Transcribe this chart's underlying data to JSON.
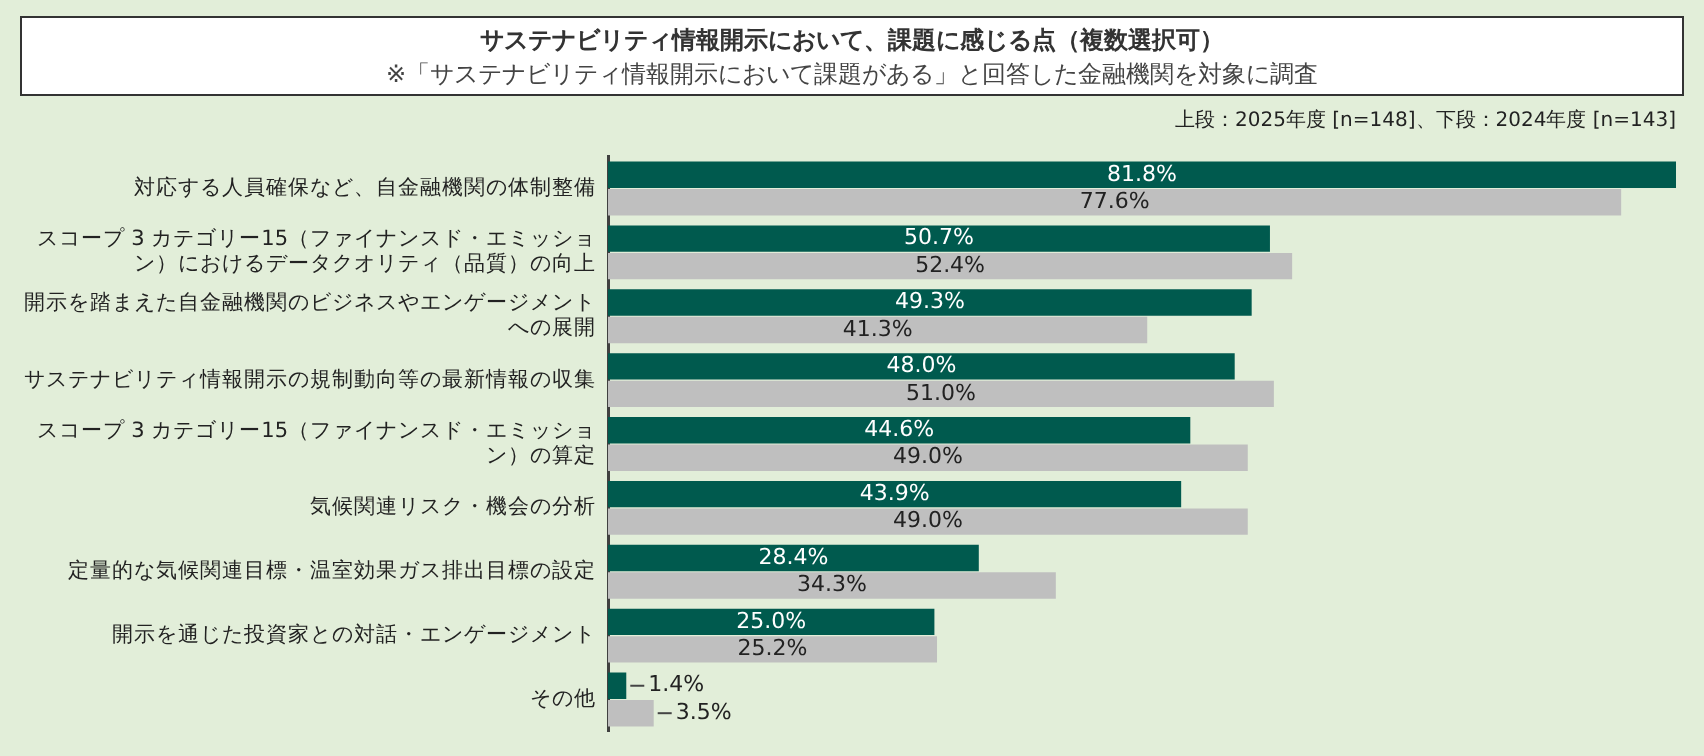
{
  "chart_data": {
    "type": "bar",
    "orientation": "horizontal",
    "title": "サステナビリティ情報開示において、課題に感じる点（複数選択可）",
    "subtitle": "※「サステナビリティ情報開示において課題がある」と回答した金融機関を対象に調査",
    "annotations": [
      "上段：2025年度 [n=148]、下段：2024年度 [n=143]"
    ],
    "categories": [
      "対応する人員確保など、自金融機関の体制整備",
      "スコープ 3 カテゴリー15（ファイナンスド・エミッション）におけるデータクオリティ（品質）の向上",
      "開示を踏まえた自金融機関のビジネスやエンゲージメントへの展開",
      "サステナビリティ情報開示の規制動向等の最新情報の収集",
      "スコープ 3 カテゴリー15（ファイナンスド・エミッション）の算定",
      "気候関連リスク・機会の分析",
      "定量的な気候関連目標・温室効果ガス排出目標の設定",
      "開示を通じた投資家との対話・エンゲージメント",
      "その他"
    ],
    "series": [
      {
        "color": "#005a4e",
        "values": [
          81.8,
          50.7,
          49.3,
          48.0,
          44.6,
          43.9,
          28.4,
          25.0,
          1.4
        ],
        "value_labels": [
          "81.8%",
          "50.7%",
          "49.3%",
          "48.0%",
          "44.6%",
          "43.9%",
          "28.4%",
          "25.0%",
          "1.4%"
        ]
      },
      {
        "color": "#bfbfbf",
        "values": [
          77.6,
          52.4,
          41.3,
          51.0,
          49.0,
          49.0,
          34.3,
          25.2,
          3.5
        ],
        "value_labels": [
          "77.6%",
          "52.4%",
          "41.3%",
          "51.0%",
          "49.0%",
          "49.0%",
          "34.3%",
          "25.2%",
          "3.5%"
        ]
      }
    ],
    "legend": false
  }
}
